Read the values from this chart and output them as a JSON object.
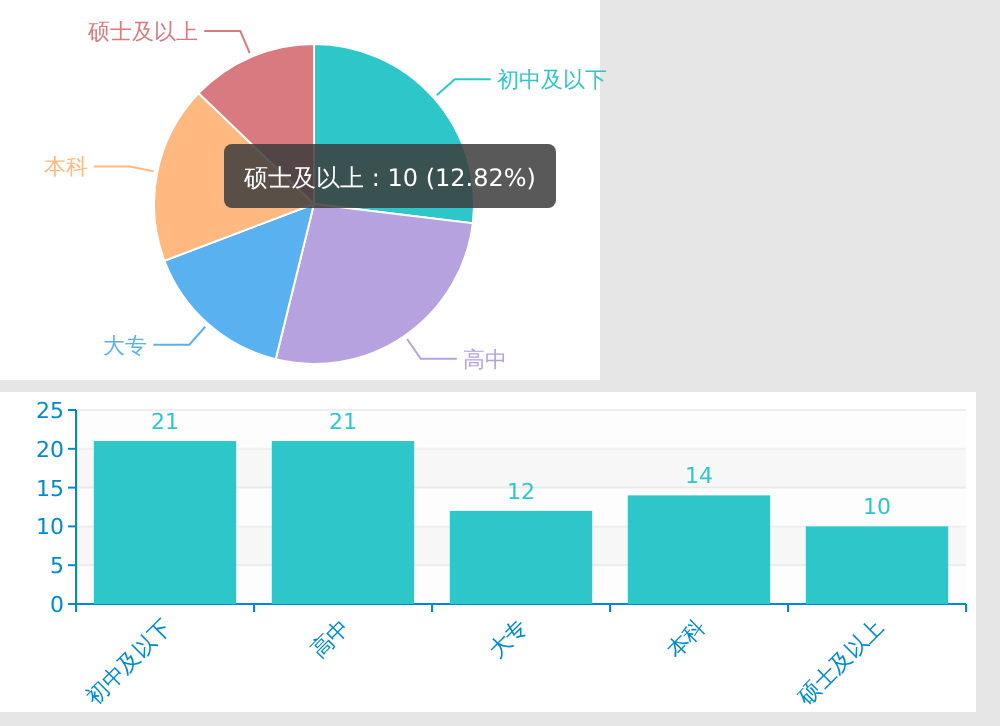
{
  "chart_data": [
    {
      "type": "pie",
      "categories": [
        "初中及以下",
        "高中",
        "大专",
        "本科",
        "硕士及以上"
      ],
      "values": [
        26.93,
        26.92,
        15.38,
        17.95,
        12.82
      ],
      "colors": [
        "#2ec7c9",
        "#b6a2de",
        "#5ab1ef",
        "#ffb980",
        "#d87a80"
      ],
      "annotations": [
        "硕士及以上 : 10 (12.82%)"
      ]
    },
    {
      "type": "bar",
      "categories": [
        "初中及以下",
        "高中",
        "大专",
        "本科",
        "硕士及以上"
      ],
      "values": [
        21,
        21,
        12,
        14,
        10
      ],
      "color": "#2ec7c9",
      "ylim": [
        0,
        25
      ],
      "yticks": [
        0,
        5,
        10,
        15,
        20,
        25
      ],
      "data_labels": true,
      "grid": "y"
    }
  ]
}
